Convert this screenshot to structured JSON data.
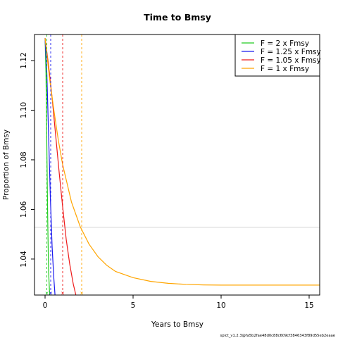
{
  "chart_data": {
    "type": "line",
    "title": "Time to Bmsy",
    "xlabel": "Years to Bmsy",
    "ylabel": "Proportion of Bmsy",
    "xlim": [
      -0.6,
      15.6
    ],
    "ylim": [
      1.0255,
      1.1305
    ],
    "xticks": [
      0,
      5,
      10,
      15
    ],
    "yticks": [
      1.04,
      1.06,
      1.08,
      1.1,
      1.12
    ],
    "ytick_labels": [
      "1.04",
      "1.06",
      "1.08",
      "1.10",
      "1.12"
    ],
    "xtick_labels": [
      "0",
      "5",
      "10",
      "15"
    ],
    "grid": false,
    "legend_position": "top-right",
    "reference_line": {
      "y": 1.0528,
      "color": "#d3d3d3"
    },
    "series": [
      {
        "name": "F = 2 x Fmsy",
        "color": "#22cc22",
        "x": [
          0.0,
          0.05,
          0.1,
          0.15,
          0.2,
          0.25,
          0.3
        ],
        "y": [
          1.129,
          1.115,
          1.085,
          1.055,
          1.035,
          1.027,
          1.022
        ],
        "marker_x": 0.1
      },
      {
        "name": "F = 1.25 x Fmsy",
        "color": "#1a1aee",
        "x": [
          0.0,
          0.1,
          0.2,
          0.3,
          0.4,
          0.5,
          0.6
        ],
        "y": [
          1.129,
          1.115,
          1.09,
          1.065,
          1.045,
          1.032,
          1.022
        ],
        "marker_x": 0.32
      },
      {
        "name": "F = 1.05 x Fmsy",
        "color": "#ee1a1a",
        "x": [
          0.0,
          0.2,
          0.4,
          0.6,
          0.8,
          1.0,
          1.2,
          1.4,
          1.6,
          1.8,
          2.0
        ],
        "y": [
          1.129,
          1.118,
          1.105,
          1.09,
          1.075,
          1.061,
          1.048,
          1.038,
          1.03,
          1.024,
          1.02
        ],
        "marker_x": 1.0
      },
      {
        "name": "F = 1 x Fmsy",
        "color": "#ffa500",
        "x": [
          0.0,
          0.25,
          0.5,
          0.75,
          1.0,
          1.5,
          2.0,
          2.5,
          3.0,
          3.5,
          4.0,
          5.0,
          6.0,
          7.0,
          8.0,
          9.0,
          10.0,
          11.0,
          12.0,
          13.0,
          14.0,
          15.0,
          15.6
        ],
        "y": [
          1.129,
          1.113,
          1.1,
          1.088,
          1.078,
          1.063,
          1.053,
          1.046,
          1.041,
          1.0375,
          1.035,
          1.0325,
          1.031,
          1.0302,
          1.0298,
          1.0296,
          1.0295,
          1.0295,
          1.0295,
          1.0295,
          1.0295,
          1.0295,
          1.0295
        ],
        "marker_x": 2.08
      }
    ]
  },
  "footer_text": "spict_v1.2.3@fa5b2fae48d0c88c609cf3846343f89d55eb2eaae"
}
